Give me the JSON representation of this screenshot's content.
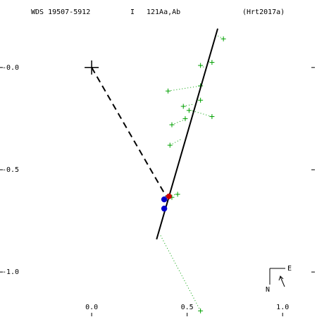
{
  "header": {
    "wds": "WDS 19507-5912",
    "grade": "I",
    "pair": "121Aa,Ab",
    "ref": "(Hrt2017a)"
  },
  "compass": {
    "north": "N",
    "east": "E"
  },
  "chart_data": {
    "type": "scatter",
    "title": "",
    "xlabel": "",
    "ylabel": "",
    "xlim": [
      -0.48,
      1.18
    ],
    "ylim": [
      0.33,
      -1.22
    ],
    "x_ticks": [
      0.0,
      0.5,
      1.0
    ],
    "x_tick_labels": [
      "0.0",
      "0.5",
      "1.0"
    ],
    "y_ticks": [
      -1.0,
      -0.5,
      -0.0
    ],
    "y_tick_labels": [
      "-1.0",
      "-0.5",
      "-0.0"
    ],
    "grid": false,
    "colors": {
      "orbit": "#000000",
      "measure": "#00a000",
      "blue_point": "#0000cc",
      "red_point": "#cc0000"
    },
    "primary": {
      "x": 0.0,
      "y": 0.0,
      "symbol": "plus"
    },
    "orbit_line": {
      "from": [
        0.34,
        -0.84
      ],
      "to": [
        0.66,
        0.19
      ],
      "style": "solid"
    },
    "node_line": {
      "from": [
        0.0,
        0.0
      ],
      "to": [
        0.39,
        -0.63
      ],
      "style": "dashed"
    },
    "blue_points": [
      {
        "x": 0.38,
        "y": -0.69
      },
      {
        "x": 0.38,
        "y": -0.645
      }
    ],
    "red_points": [
      {
        "x": 0.405,
        "y": -0.63
      }
    ],
    "measures": [
      {
        "x": 0.57,
        "y": -1.19,
        "ox": 0.36,
        "oy": -0.82
      },
      {
        "x": 0.42,
        "y": -0.635,
        "ox": 0.4,
        "oy": -0.63
      },
      {
        "x": 0.45,
        "y": -0.62,
        "ox": 0.41,
        "oy": -0.625
      },
      {
        "x": 0.41,
        "y": -0.38,
        "ox": 0.47,
        "oy": -0.35
      },
      {
        "x": 0.42,
        "y": -0.28,
        "ox": 0.5,
        "oy": -0.25
      },
      {
        "x": 0.49,
        "y": -0.25,
        "ox": 0.5,
        "oy": -0.25
      },
      {
        "x": 0.51,
        "y": -0.21,
        "ox": 0.52,
        "oy": -0.21
      },
      {
        "x": 0.63,
        "y": -0.24,
        "ox": 0.52,
        "oy": -0.21
      },
      {
        "x": 0.48,
        "y": -0.19,
        "ox": 0.53,
        "oy": -0.18
      },
      {
        "x": 0.57,
        "y": -0.16,
        "ox": 0.55,
        "oy": -0.15
      },
      {
        "x": 0.57,
        "y": -0.09,
        "ox": 0.57,
        "oy": -0.09
      },
      {
        "x": 0.4,
        "y": -0.115,
        "ox": 0.57,
        "oy": -0.09
      },
      {
        "x": 0.57,
        "y": 0.01,
        "ox": 0.59,
        "oy": 0.0
      },
      {
        "x": 0.63,
        "y": 0.025,
        "ox": 0.61,
        "oy": 0.03
      },
      {
        "x": 0.69,
        "y": 0.14,
        "ox": 0.65,
        "oy": 0.16
      }
    ]
  }
}
